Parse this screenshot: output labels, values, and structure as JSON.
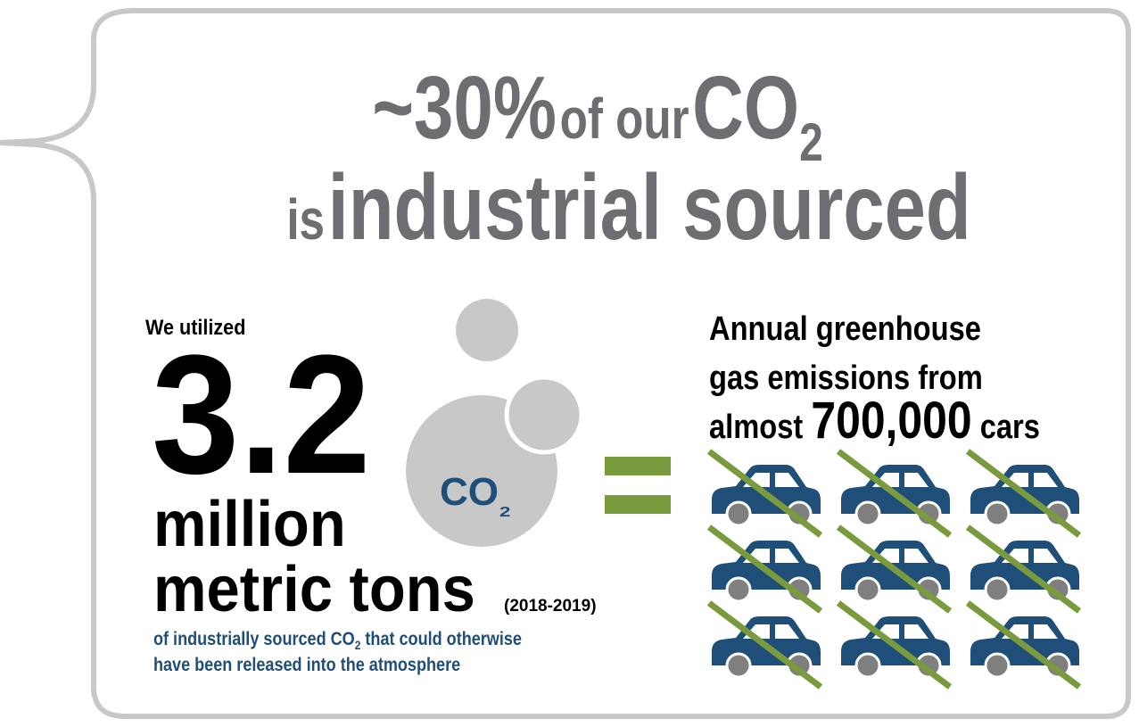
{
  "title": {
    "line1": {
      "percent": "~30%",
      "mid": "of our",
      "co": "CO",
      "sub": "2"
    },
    "line2": {
      "is": "is",
      "rest": "industrial sourced"
    }
  },
  "left": {
    "intro": "We utilized",
    "number": "3.2",
    "unit1": "million",
    "unit2": "metric tons",
    "period": "(2018-2019)",
    "note1": {
      "pre": "of industrially sourced CO",
      "sub": "2",
      "post": " that could otherwise"
    },
    "note2": "have been released into the atmosphere"
  },
  "bubble": {
    "co": "CO",
    "sub": "₂"
  },
  "right": {
    "line1": "Annual greenhouse",
    "line2": "gas emissions from",
    "line3": {
      "pre": "almost ",
      "number": "700,000",
      "post": " cars"
    }
  }
}
